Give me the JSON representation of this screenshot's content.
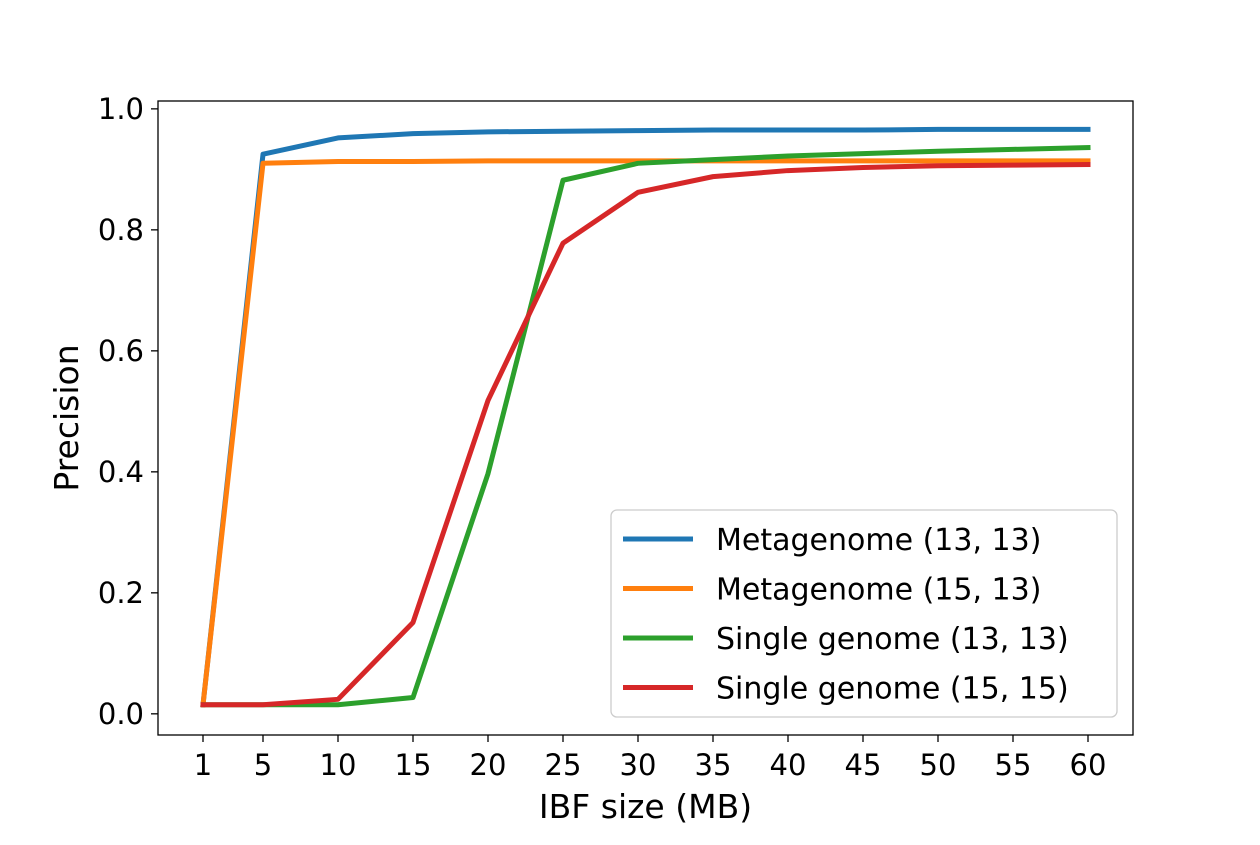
{
  "chart_data": {
    "type": "line",
    "title": "",
    "xlabel": "IBF size (MB)",
    "ylabel": "Precision",
    "x": [
      1,
      5,
      10,
      15,
      20,
      25,
      30,
      35,
      40,
      45,
      50,
      55,
      60
    ],
    "x_tick_labels": [
      "1",
      "5",
      "10",
      "15",
      "20",
      "25",
      "30",
      "35",
      "40",
      "45",
      "50",
      "55",
      "60"
    ],
    "y_ticks": [
      0.0,
      0.2,
      0.4,
      0.6,
      0.8,
      1.0
    ],
    "y_tick_labels": [
      "0.0",
      "0.2",
      "0.4",
      "0.6",
      "0.8",
      "1.0"
    ],
    "xlim": [
      -2,
      63
    ],
    "ylim": [
      -0.035,
      1.013
    ],
    "grid": false,
    "legend_position": "lower-right",
    "series": [
      {
        "name": "Metagenome (13, 13)",
        "color": "#1f77b4",
        "values": [
          0.015,
          0.925,
          0.952,
          0.959,
          0.962,
          0.963,
          0.964,
          0.965,
          0.965,
          0.965,
          0.966,
          0.966,
          0.966
        ]
      },
      {
        "name": "Metagenome (15, 13)",
        "color": "#ff7f0e",
        "values": [
          0.015,
          0.91,
          0.913,
          0.913,
          0.914,
          0.914,
          0.914,
          0.914,
          0.914,
          0.914,
          0.914,
          0.914,
          0.914
        ]
      },
      {
        "name": "Single genome (13, 13)",
        "color": "#2ca02c",
        "values": [
          0.015,
          0.015,
          0.015,
          0.027,
          0.397,
          0.882,
          0.91,
          0.916,
          0.922,
          0.926,
          0.93,
          0.933,
          0.936
        ]
      },
      {
        "name": "Single genome (15, 15)",
        "color": "#d62728",
        "values": [
          0.015,
          0.015,
          0.024,
          0.151,
          0.518,
          0.778,
          0.862,
          0.888,
          0.898,
          0.903,
          0.906,
          0.907,
          0.908
        ]
      }
    ]
  }
}
